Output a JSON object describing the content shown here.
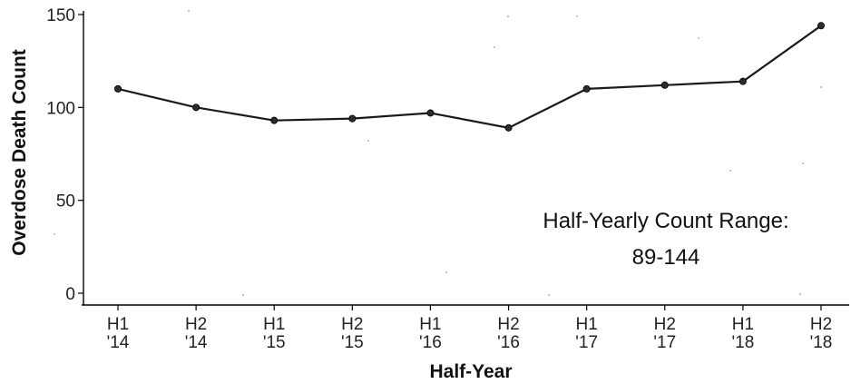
{
  "chart_data": {
    "type": "line",
    "title": "",
    "xlabel": "Half-Year",
    "ylabel": "Overdose Death Count",
    "categories": [
      [
        "H1",
        "'14"
      ],
      [
        "H2",
        "'14"
      ],
      [
        "H1",
        "'15"
      ],
      [
        "H2",
        "'15"
      ],
      [
        "H1",
        "'16"
      ],
      [
        "H2",
        "'16"
      ],
      [
        "H1",
        "'17"
      ],
      [
        "H2",
        "'17"
      ],
      [
        "H1",
        "'18"
      ],
      [
        "H2",
        "'18"
      ]
    ],
    "series": [
      {
        "values": [
          110,
          100,
          93,
          94,
          97,
          89,
          110,
          112,
          114,
          144
        ]
      }
    ],
    "ylim": [
      0,
      150
    ],
    "yticks": [
      0,
      50,
      100,
      150
    ],
    "grid": false,
    "annotation": {
      "line1": "Half-Yearly Count Range:",
      "line2": "89-144"
    },
    "colors": {
      "line": "#1a1a1a",
      "point": "#2b2b2b",
      "axis": "#000000"
    }
  }
}
